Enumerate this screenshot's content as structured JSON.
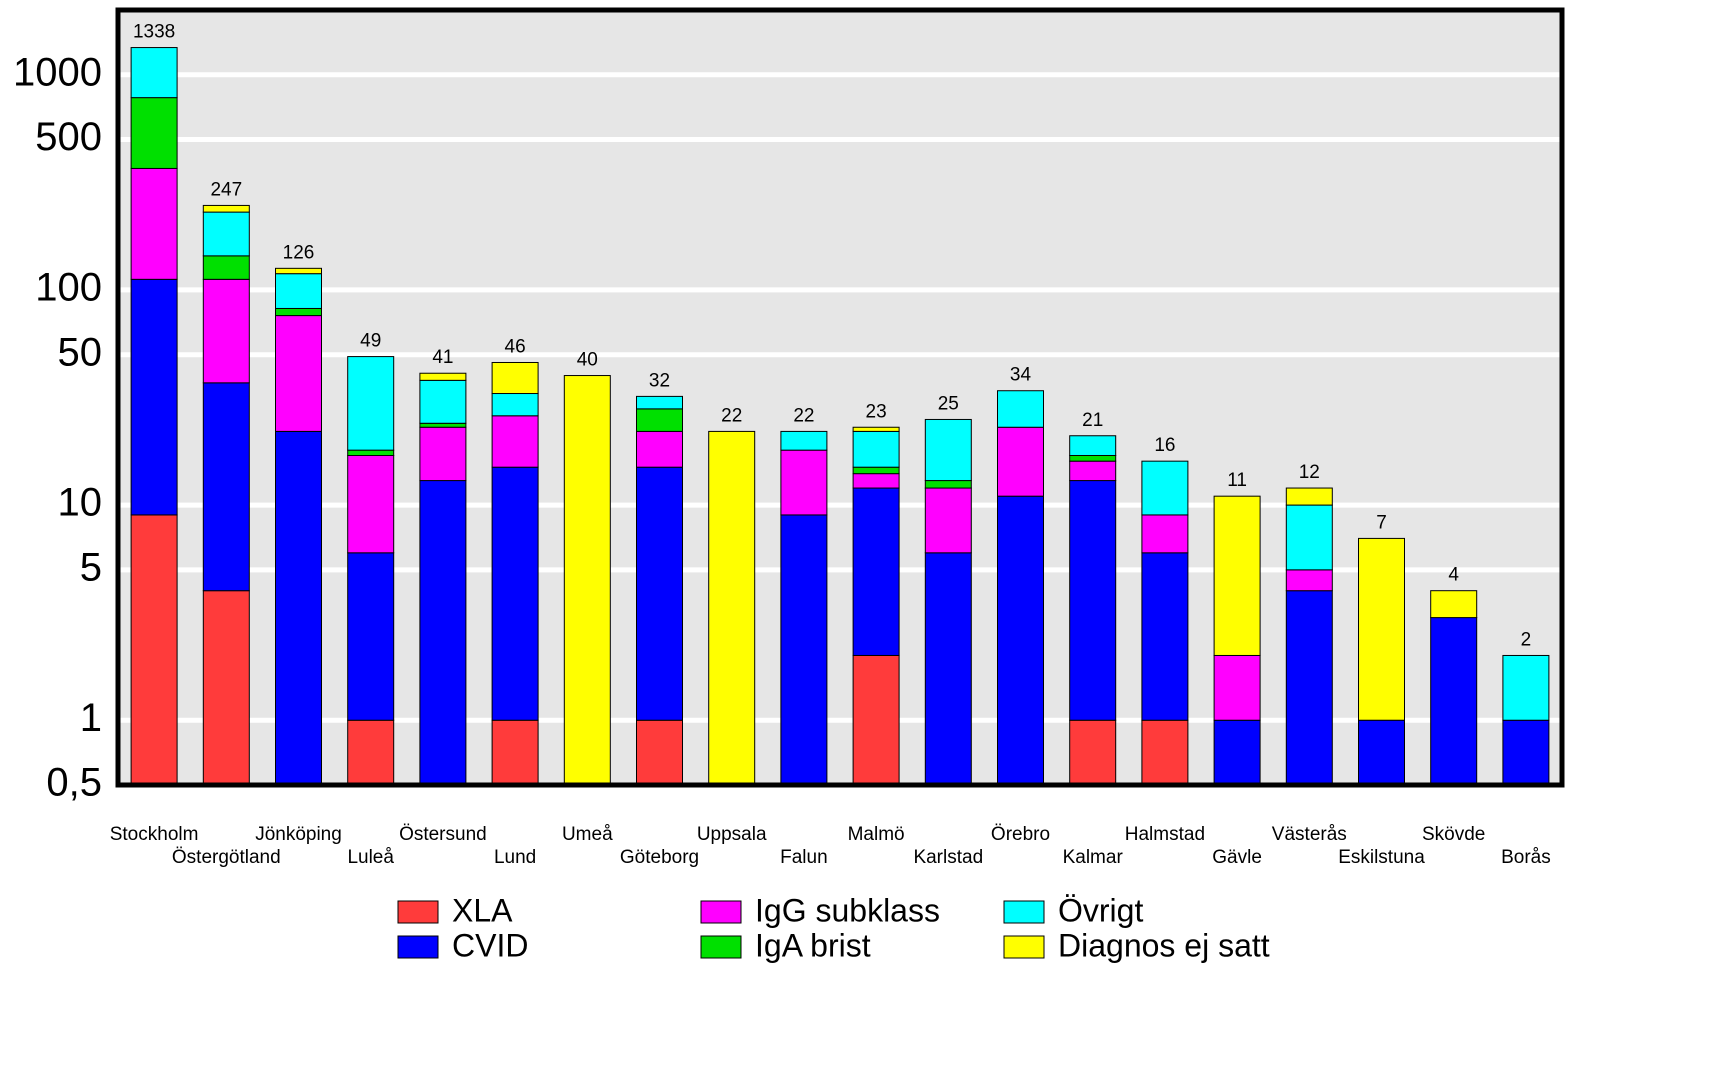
{
  "chart_data": {
    "type": "stacked_bar",
    "log_scale": true,
    "grid": true,
    "categories": [
      "Stockholm",
      "Östergötland",
      "Jönköping",
      "Luleå",
      "Östersund",
      "Lund",
      "Umeå",
      "Göteborg",
      "Uppsala",
      "Falun",
      "Malmö",
      "Karlstad",
      "Örebro",
      "Kalmar",
      "Halmstad",
      "Gävle",
      "Västerås",
      "Eskilstuna",
      "Skövde",
      "Borås"
    ],
    "series": [
      {
        "name": "XLA",
        "color": "#ff3b3b",
        "values": [
          9,
          4,
          null,
          1,
          null,
          1,
          null,
          1,
          null,
          null,
          2,
          null,
          null,
          1,
          1,
          null,
          null,
          null,
          null,
          null
        ]
      },
      {
        "name": "CVID",
        "color": "#0000ff",
        "values": [
          103,
          33,
          22,
          5,
          13,
          14,
          null,
          14,
          null,
          9,
          10,
          6,
          11,
          12,
          5,
          1,
          4,
          1,
          3,
          1
        ]
      },
      {
        "name": "IgG subklass",
        "color": "#ff00ff",
        "values": [
          255,
          75,
          54,
          11,
          10,
          11,
          null,
          7,
          null,
          9,
          2,
          6,
          12,
          3,
          3,
          1,
          1,
          null,
          null,
          null
        ]
      },
      {
        "name": "IgA brist",
        "color": "#00e000",
        "values": [
          416,
          32,
          6,
          1,
          1,
          null,
          null,
          6,
          null,
          null,
          1,
          1,
          null,
          1,
          null,
          null,
          null,
          null,
          null,
          null
        ]
      },
      {
        "name": "Övrigt",
        "color": "#00ffff",
        "values": [
          555,
          86,
          37,
          31,
          14,
          7,
          null,
          4,
          null,
          4,
          7,
          12,
          11,
          4,
          7,
          null,
          5,
          null,
          null,
          1
        ]
      },
      {
        "name": "Diagnos ej satt",
        "color": "#ffff00",
        "values": [
          null,
          17,
          7,
          null,
          3,
          13,
          40,
          null,
          22,
          null,
          1,
          null,
          null,
          null,
          null,
          9,
          2,
          6,
          1,
          null
        ]
      }
    ],
    "totals": [
      1338,
      247,
      126,
      49,
      41,
      46,
      40,
      32,
      22,
      22,
      23,
      25,
      34,
      21,
      16,
      11,
      12,
      7,
      4,
      2
    ],
    "ylim": [
      0.5,
      2000
    ],
    "yticks": [
      {
        "value": 0.5,
        "label": "0,5"
      },
      1,
      5,
      10,
      50,
      100,
      500,
      1000
    ]
  }
}
